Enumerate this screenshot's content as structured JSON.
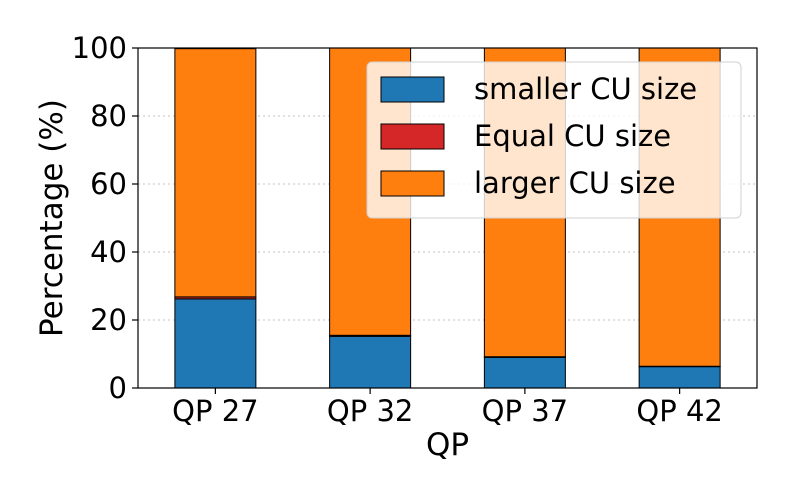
{
  "chart_data": {
    "type": "bar",
    "stacked": true,
    "title": "",
    "xlabel": "QP",
    "ylabel": "Percentage (%)",
    "ylim": [
      0,
      100
    ],
    "yticks": [
      0,
      20,
      40,
      60,
      80,
      100
    ],
    "grid": "horizontal dotted",
    "legend_position": "top-right",
    "categories": [
      "QP 27",
      "QP 32",
      "QP 37",
      "QP 42"
    ],
    "series": [
      {
        "name": "smaller CU size",
        "color": "#1f77b4",
        "values": [
          26.2,
          15.2,
          9.0,
          6.3
        ]
      },
      {
        "name": "Equal CU size",
        "color": "#d62728",
        "values": [
          0.6,
          0.3,
          0.2,
          0.1
        ]
      },
      {
        "name": "larger CU size",
        "color": "#ff7f0e",
        "values": [
          73.0,
          84.5,
          90.8,
          93.6
        ]
      }
    ]
  }
}
